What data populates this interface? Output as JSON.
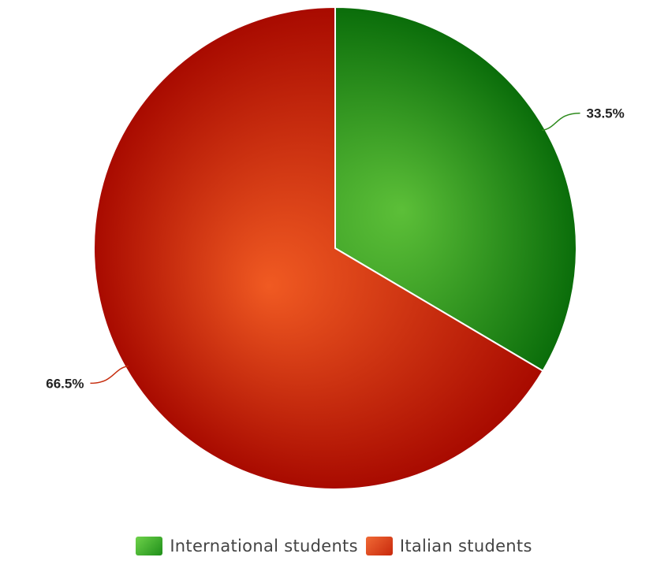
{
  "chart_data": {
    "type": "pie",
    "slices": [
      {
        "name": "International students",
        "value": 33.5,
        "label": "33.5%",
        "color": "#2e8b1e",
        "gradient": [
          "#5cbf38",
          "#0a6d0a"
        ],
        "legend_swatch": [
          "#6ed24a",
          "#1f8f1a"
        ]
      },
      {
        "name": "Italian students",
        "value": 66.5,
        "label": "66.5%",
        "color": "#c62d0e",
        "gradient": [
          "#f05a22",
          "#a80a00"
        ],
        "legend_swatch": [
          "#f06a35",
          "#c8280c"
        ]
      }
    ],
    "start_angle": "top",
    "direction": "clockwise",
    "legend_position": "bottom-center"
  }
}
